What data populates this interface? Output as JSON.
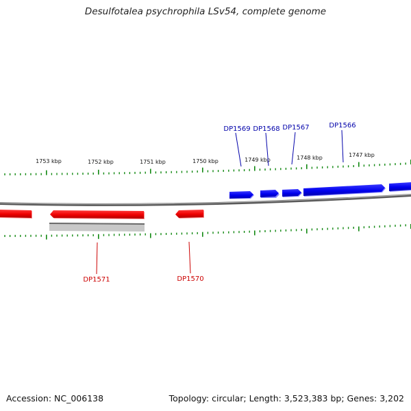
{
  "title": "Desulfotalea psychrophila LSv54, complete genome",
  "footer": {
    "accession": "Accession: NC_006138",
    "summary": "Topology: circular; Length: 3,523,383 bp; Genes: 3,202"
  },
  "scale_labels": [
    "1753 kbp",
    "1752 kbp",
    "1751 kbp",
    "1750 kbp",
    "1749 kbp",
    "1748 kbp",
    "1747 kbp"
  ],
  "genes_forward": [
    "DP1569",
    "DP1568",
    "DP1567",
    "DP1566"
  ],
  "genes_reverse": [
    "DP1571",
    "DP1570"
  ],
  "colors": {
    "forward": "#0000ee",
    "reverse": "#ee0000",
    "ticks": "#118811",
    "backbone": "#888888",
    "label_forward": "#0000aa",
    "label_reverse": "#cc0000"
  }
}
